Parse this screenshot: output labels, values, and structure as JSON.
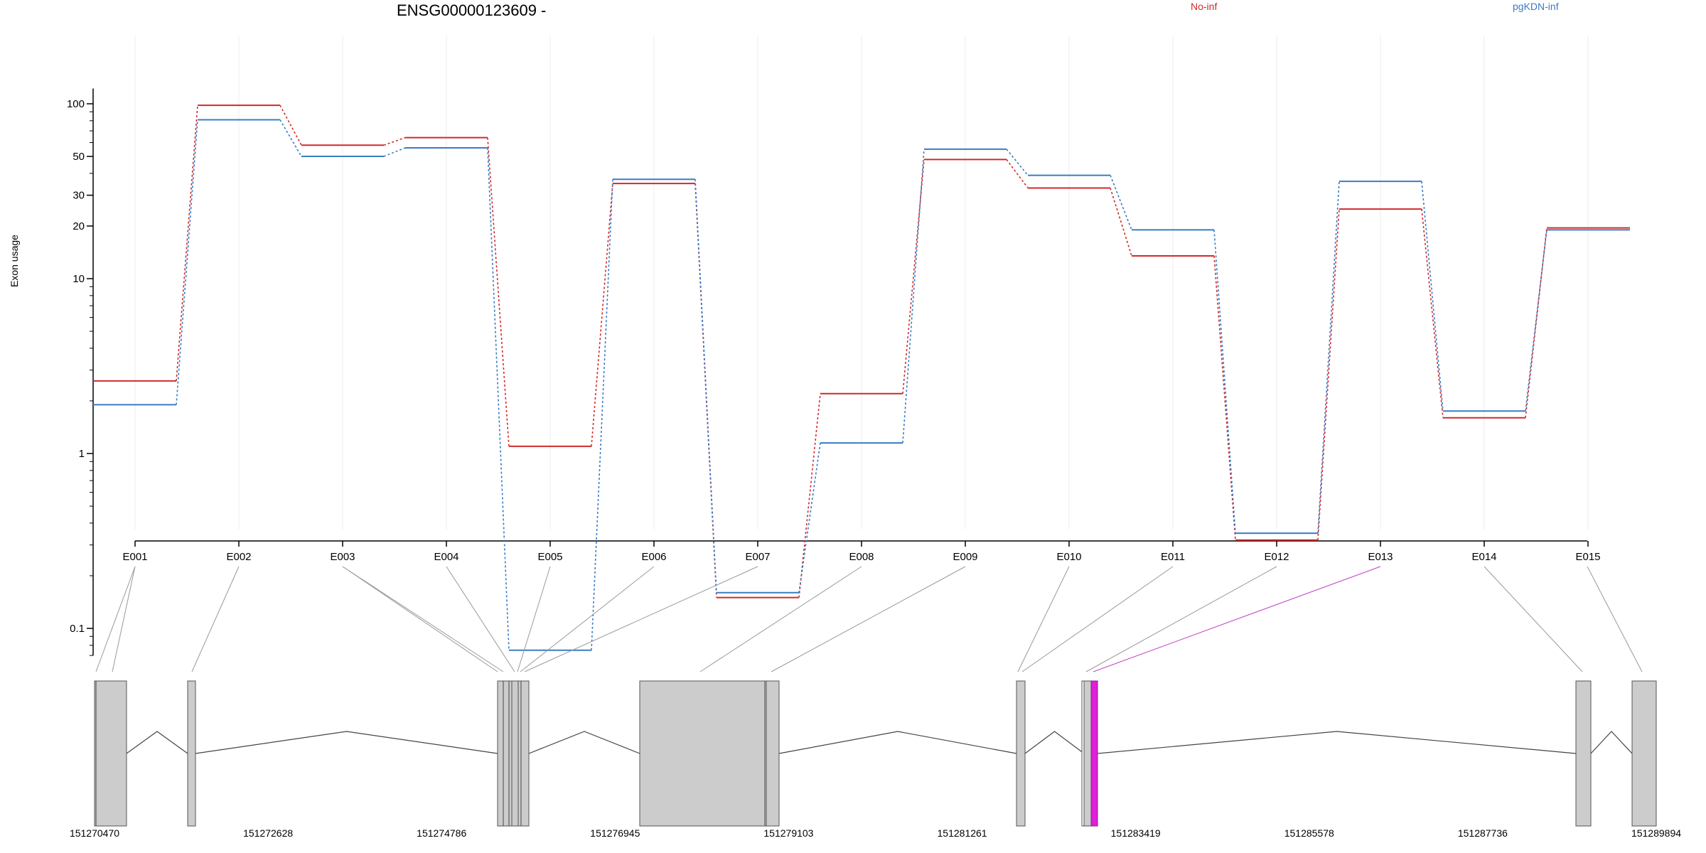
{
  "chart_data": {
    "type": "line",
    "title": "ENSG00000123609 -",
    "ylabel": "Exon usage",
    "yscale": "log",
    "ylim": [
      0.07,
      120
    ],
    "yticks": [
      {
        "value": 0.1,
        "label": "0.1"
      },
      {
        "value": 1,
        "label": "1"
      },
      {
        "value": 10,
        "label": "10"
      },
      {
        "value": 20,
        "label": "20"
      },
      {
        "value": 30,
        "label": "30"
      },
      {
        "value": 50,
        "label": "50"
      },
      {
        "value": 100,
        "label": "100"
      }
    ],
    "categories": [
      "E001",
      "E002",
      "E003",
      "E004",
      "E005",
      "E006",
      "E007",
      "E008",
      "E009",
      "E010",
      "E011",
      "E012",
      "E013",
      "E014",
      "E015"
    ],
    "series": [
      {
        "name": "No-inf",
        "color": "#d12a2a",
        "values": [
          2.6,
          98,
          58,
          64,
          1.1,
          35,
          0.15,
          2.2,
          48,
          33,
          13.5,
          0.32,
          25,
          1.6,
          19.5
        ]
      },
      {
        "name": "pgKDN-inf",
        "color": "#3a7cc4",
        "values": [
          1.9,
          81,
          50,
          56,
          0.075,
          37,
          0.16,
          1.15,
          55,
          39,
          19,
          0.35,
          36,
          1.75,
          19
        ]
      }
    ],
    "gene_model": {
      "coordinates": [
        "151270470",
        "151272628",
        "151274786",
        "151276945",
        "151279103",
        "151281261",
        "151283419",
        "151285578",
        "151287736",
        "151289894"
      ],
      "highlighted_exon": "E013",
      "highlight_color": "#e020d8"
    }
  }
}
